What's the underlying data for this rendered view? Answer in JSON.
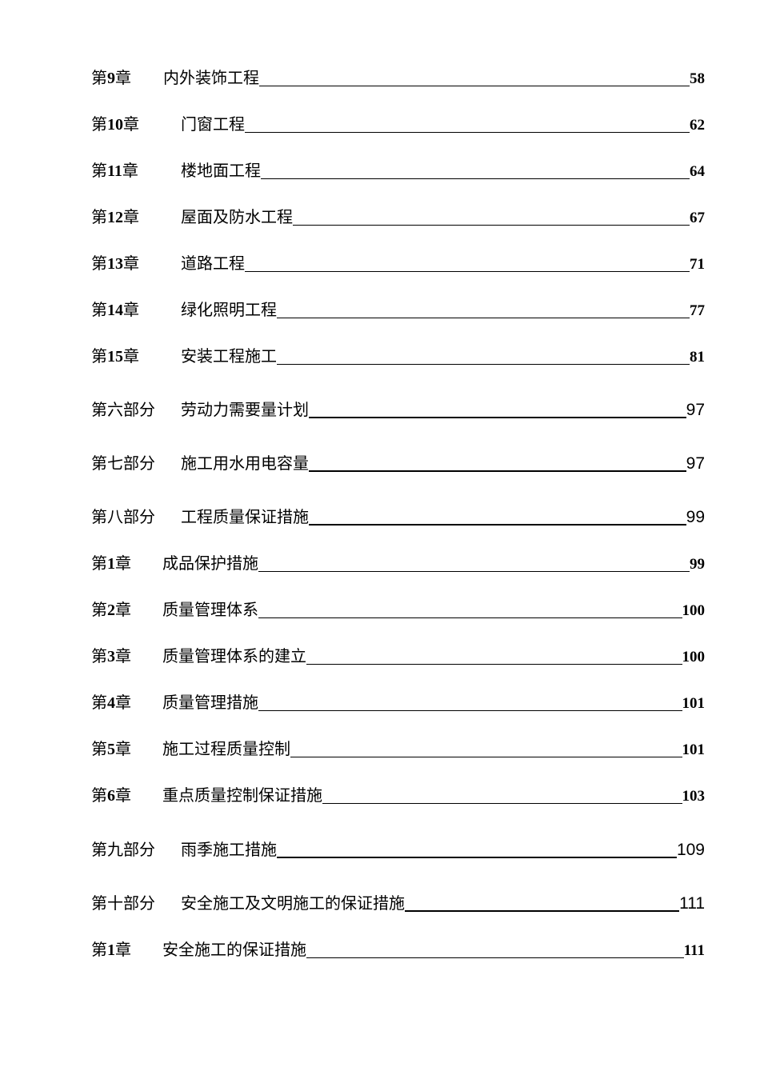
{
  "entries": [
    {
      "prefix": "第",
      "num": "9",
      "suffix": "章",
      "title": "内外装饰工程",
      "page": "58"
    },
    {
      "prefix": "第",
      "num": "10",
      "suffix": "章",
      "title": "门窗工程",
      "page": "62"
    },
    {
      "prefix": "第",
      "num": "11",
      "suffix": "章",
      "title": "楼地面工程",
      "page": "64"
    },
    {
      "prefix": "第",
      "num": "12",
      "suffix": "章",
      "title": "屋面及防水工程",
      "page": "67"
    },
    {
      "prefix": "第",
      "num": "13",
      "suffix": "章",
      "title": "道路工程",
      "page": "71"
    },
    {
      "prefix": "第",
      "num": "14",
      "suffix": "章",
      "title": "绿化照明工程",
      "page": "77"
    },
    {
      "prefix": "第",
      "num": "15",
      "suffix": "章",
      "title": "安装工程施工",
      "page": "81"
    },
    {
      "label": "第六部分",
      "title": "劳动力需要量计划",
      "page": "97"
    },
    {
      "label": "第七部分",
      "title": "施工用水用电容量",
      "page": "97"
    },
    {
      "label": "第八部分",
      "title": "工程质量保证措施",
      "page": "99"
    },
    {
      "prefix": "第",
      "num": "1",
      "suffix": "章",
      "title": "成品保护措施",
      "page": "99"
    },
    {
      "prefix": "第",
      "num": "2",
      "suffix": "章",
      "title": "质量管理体系",
      "page": "100"
    },
    {
      "prefix": "第",
      "num": "3",
      "suffix": "章",
      "title": "质量管理体系的建立",
      "page": "100"
    },
    {
      "prefix": "第",
      "num": "4",
      "suffix": "章",
      "title": "质量管理措施",
      "page": "101"
    },
    {
      "prefix": "第",
      "num": "5",
      "suffix": "章",
      "title": "施工过程质量控制",
      "page": "101"
    },
    {
      "prefix": "第",
      "num": "6",
      "suffix": "章",
      "title": "重点质量控制保证措施",
      "page": "103"
    },
    {
      "label": "第九部分",
      "title": "雨季施工措施",
      "page": "109"
    },
    {
      "label": "第十部分",
      "title": "安全施工及文明施工的保证措施",
      "page": "111"
    },
    {
      "prefix": "第",
      "num": "1",
      "suffix": "章",
      "title": "安全施工的保证措施",
      "page": "111"
    }
  ]
}
